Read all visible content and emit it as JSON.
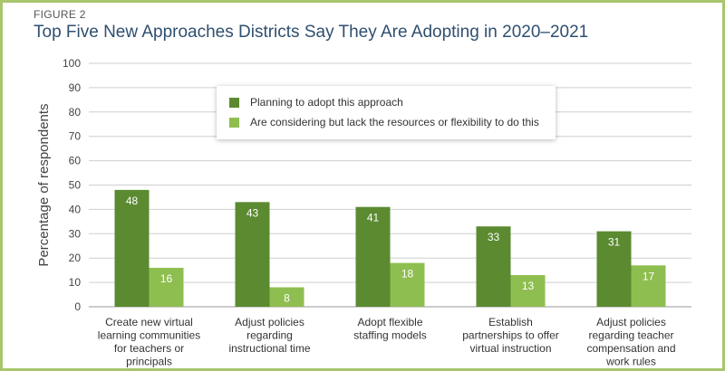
{
  "figure_label": "FIGURE 2",
  "title": "Top Five New Approaches Districts Say They Are Adopting in 2020–2021",
  "colors": {
    "frame": "#a8c66c",
    "series1": "#5b8a30",
    "series2": "#8fbe50"
  },
  "chart_data": {
    "type": "bar",
    "title": "Top Five New Approaches Districts Say They Are Adopting in 2020–2021",
    "ylabel": "Percentage of respondents",
    "xlabel": "",
    "ylim": [
      0,
      100
    ],
    "yticks": [
      0,
      10,
      20,
      30,
      40,
      50,
      60,
      70,
      80,
      90,
      100
    ],
    "grid": true,
    "legend_position": "top-center",
    "categories": [
      [
        "Create new virtual",
        "learning communities",
        "for teachers or",
        "principals"
      ],
      [
        "Adjust policies",
        "regarding",
        "instructional time"
      ],
      [
        "Adopt flexible",
        "staffing models"
      ],
      [
        "Establish",
        "partnerships to offer",
        "virtual instruction"
      ],
      [
        "Adjust policies",
        "regarding teacher",
        "compensation and",
        "work rules"
      ]
    ],
    "series": [
      {
        "name": "Planning to adopt this approach",
        "values": [
          48,
          43,
          41,
          33,
          31
        ]
      },
      {
        "name": "Are considering but lack the resources or flexibility to do this",
        "values": [
          16,
          8,
          18,
          13,
          17
        ]
      }
    ]
  }
}
